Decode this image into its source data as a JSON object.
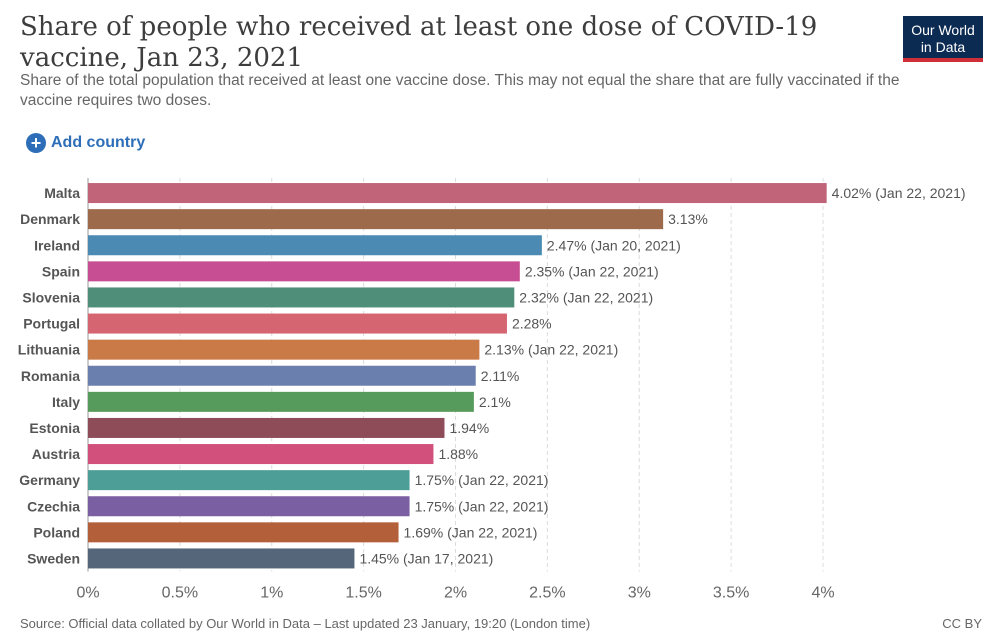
{
  "header": {
    "title": "Share of people who received at least one dose of COVID-19 vaccine, Jan 23, 2021",
    "subtitle": "Share of the total population that received at least one vaccine dose. This may not equal the share that are fully vaccinated if the vaccine requires two doses.",
    "logo_line1": "Our World",
    "logo_line2": "in Data"
  },
  "controls": {
    "add_country_label": "Add country",
    "add_icon": "plus-circle-icon"
  },
  "footer": {
    "source": "Source: Official data collated by Our World in Data – Last updated 23 January, 19:20 (London time)",
    "license": "CC BY"
  },
  "colors": {
    "title": "#3d3d3d",
    "accent": "#2e6eb8",
    "logo_bg": "#0c2b52",
    "logo_bar": "#d02f3a"
  },
  "chart_data": {
    "type": "bar",
    "orientation": "horizontal",
    "unit": "%",
    "xlim": [
      0,
      4
    ],
    "xticks": [
      0,
      0.5,
      1,
      1.5,
      2,
      2.5,
      3,
      3.5,
      4
    ],
    "xtick_labels": [
      "0%",
      "0.5%",
      "1%",
      "1.5%",
      "2%",
      "2.5%",
      "3%",
      "3.5%",
      "4%"
    ],
    "grid": "vertical-dashed",
    "categories": [
      "Malta",
      "Denmark",
      "Ireland",
      "Spain",
      "Slovenia",
      "Portugal",
      "Lithuania",
      "Romania",
      "Italy",
      "Estonia",
      "Austria",
      "Germany",
      "Czechia",
      "Poland",
      "Sweden"
    ],
    "values": [
      4.02,
      3.13,
      2.47,
      2.35,
      2.32,
      2.28,
      2.13,
      2.11,
      2.1,
      1.94,
      1.88,
      1.75,
      1.75,
      1.69,
      1.45
    ],
    "value_labels": [
      "4.02% (Jan 22, 2021)",
      "3.13%",
      "2.47% (Jan 20, 2021)",
      "2.35% (Jan 22, 2021)",
      "2.32% (Jan 22, 2021)",
      "2.28%",
      "2.13% (Jan 22, 2021)",
      "2.11%",
      "2.1%",
      "1.94%",
      "1.88%",
      "1.75% (Jan 22, 2021)",
      "1.75% (Jan 22, 2021)",
      "1.69% (Jan 22, 2021)",
      "1.45% (Jan 17, 2021)"
    ],
    "colors": [
      "#c1647a",
      "#9e6a4c",
      "#4a8ab3",
      "#c84e93",
      "#4f8e78",
      "#d56571",
      "#c97a47",
      "#6a7fae",
      "#569b5b",
      "#8e4b58",
      "#d2507c",
      "#4c9e96",
      "#7a5fa3",
      "#b35f39",
      "#56667a"
    ]
  }
}
